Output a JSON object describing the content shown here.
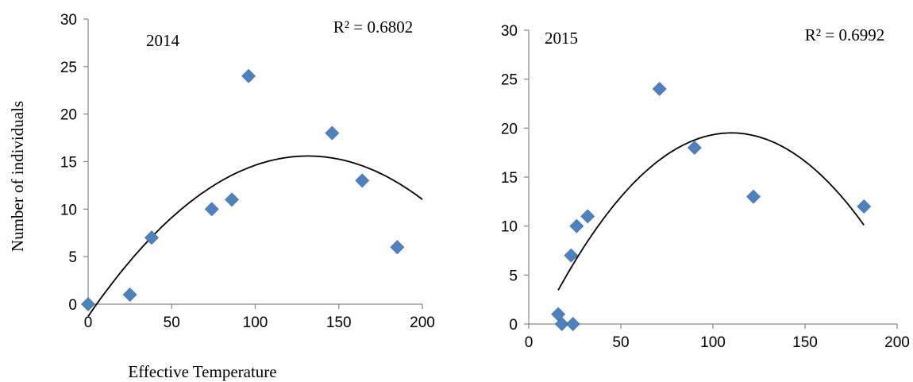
{
  "ylabel": "Number of  individuals",
  "xlabel": "Effective Temperature",
  "chart_data": [
    {
      "type": "scatter",
      "title": "2014",
      "r2": "R² = 0.6802",
      "xlim": [
        0,
        200
      ],
      "ylim": [
        0,
        30
      ],
      "xticks": [
        "0",
        "50",
        "100",
        "150",
        "200"
      ],
      "yticks": [
        "0",
        "5",
        "10",
        "15",
        "20",
        "25",
        "30"
      ],
      "points": [
        [
          0,
          0
        ],
        [
          25,
          1
        ],
        [
          38,
          7
        ],
        [
          74,
          10
        ],
        [
          86,
          11
        ],
        [
          96,
          24
        ],
        [
          146,
          18
        ],
        [
          164,
          13
        ],
        [
          185,
          6
        ]
      ],
      "trendline": {
        "type": "polynomial",
        "order": 2,
        "x_range": [
          0,
          200
        ],
        "coef": [
          -1.28,
          0.2565,
          -0.000975
        ]
      },
      "marker_color": "#4f81bd",
      "line_color": "#000000"
    },
    {
      "type": "scatter",
      "title": "2015",
      "r2": "R² = 0.6992",
      "xlim": [
        0,
        200
      ],
      "ylim": [
        0,
        30
      ],
      "xticks": [
        "0",
        "50",
        "100",
        "150",
        "200"
      ],
      "yticks": [
        "0",
        "5",
        "10",
        "15",
        "20",
        "25",
        "30"
      ],
      "points": [
        [
          16,
          1
        ],
        [
          18,
          0
        ],
        [
          23,
          7
        ],
        [
          24,
          0
        ],
        [
          26,
          10
        ],
        [
          32,
          11
        ],
        [
          71,
          24
        ],
        [
          90,
          18
        ],
        [
          122,
          13
        ],
        [
          182,
          12
        ]
      ],
      "trendline": {
        "type": "polynomial",
        "order": 2,
        "x_range": [
          16,
          182
        ],
        "coef": [
          -2.48,
          0.3998,
          -0.001817
        ]
      },
      "marker_color": "#4f81bd",
      "line_color": "#000000"
    }
  ]
}
